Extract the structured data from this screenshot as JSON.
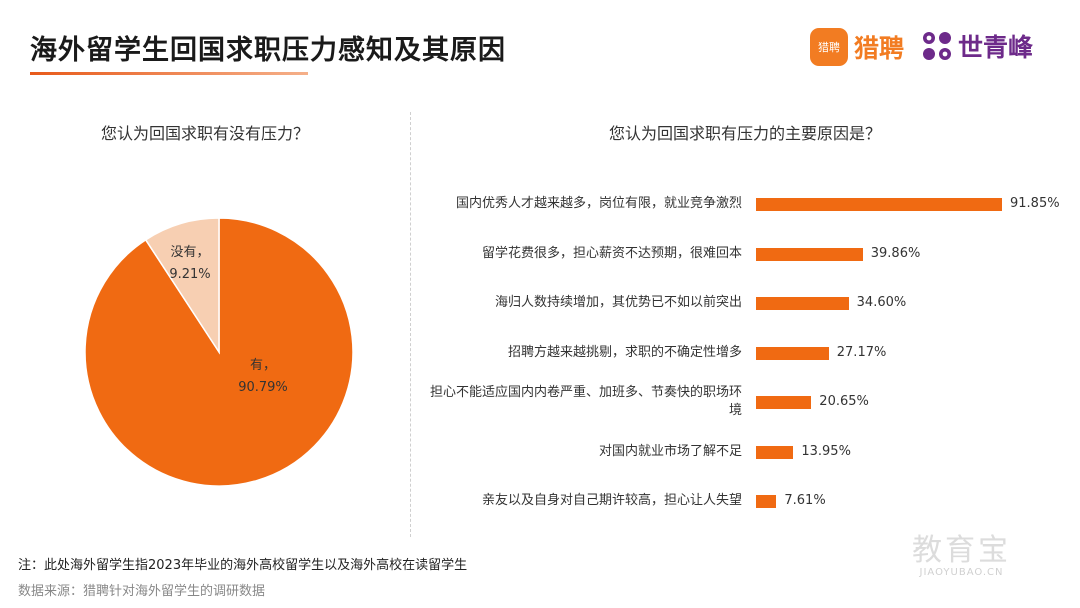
{
  "header": {
    "title": "海外留学生回国求职压力感知及其原因",
    "logo_liepin_badge": "猎聘",
    "logo_liepin_text": "猎聘",
    "logo_sqf_text": "世青峰"
  },
  "colors": {
    "accent": "#f06a12",
    "pie_yes": "#f06a12",
    "pie_no": "#f7cfb2",
    "logo_orange": "#f27c22",
    "logo_purple": "#6d2a8a"
  },
  "chart_data": [
    {
      "type": "pie",
      "title": "您认为回国求职有没有压力？",
      "slices": [
        {
          "label": "有，",
          "value": 90.79,
          "value_label": "90.79%"
        },
        {
          "label": "没有，",
          "value": 9.21,
          "value_label": "9.21%"
        }
      ]
    },
    {
      "type": "bar",
      "orientation": "horizontal",
      "title": "您认为回国求职有压力的主要原因是？",
      "categories": [
        "国内优秀人才越来越多，岗位有限，就业竞争激烈",
        "留学花费很多，担心薪资不达预期，很难回本",
        "海归人数持续增加，其优势已不如以前突出",
        "招聘方越来越挑剔，求职的不确定性增多",
        "担心不能适应国内内卷严重、加班多、节奏快的职场环境",
        "对国内就业市场了解不足",
        "亲友以及自身对自己期许较高，担心让人失望"
      ],
      "values": [
        91.85,
        39.86,
        34.6,
        27.17,
        20.65,
        13.95,
        7.61
      ],
      "value_labels": [
        "91.85%",
        "39.86%",
        "34.60%",
        "27.17%",
        "20.65%",
        "13.95%",
        "7.61%"
      ]
    }
  ],
  "footer": {
    "note": "注：此处海外留学生指2023年毕业的海外高校留学生以及海外高校在读留学生",
    "source": "数据来源：猎聘针对海外留学生的调研数据"
  },
  "watermark": {
    "main": "教育宝",
    "sub": "JIAOYUBAO.CN"
  }
}
